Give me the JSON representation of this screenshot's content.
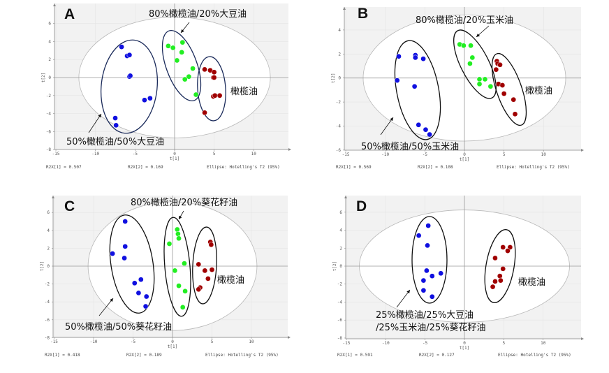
{
  "colors": {
    "blue": "#1010e0",
    "green": "#22ee22",
    "red": "#a00000",
    "group_ellipse": "#1a2a5a",
    "plot_bg": "#f2f2f2"
  },
  "chart_data": [
    {
      "type": "scatter",
      "panel": "A",
      "xlabel": "t[1]",
      "ylabel": "t[2]",
      "xlim": [
        -15,
        14.7
      ],
      "ylim": [
        -8,
        8
      ],
      "xticks": [
        -15,
        -10,
        -5,
        0,
        5,
        10
      ],
      "yticks": [
        -8,
        -6,
        -4,
        -2,
        0,
        2,
        4,
        6
      ],
      "hotelling_ellipse": {
        "rx": 12.1,
        "ry": 6.7
      },
      "labels": {
        "top": "80%橄榄油/20%大豆油",
        "right": "橄榄油",
        "bottom": [
          "50%橄榄油/50%大豆油"
        ]
      },
      "footer": {
        "r2x1": "R2X[1] = 0.507",
        "r2x2": "R2X[2] = 0.169",
        "ellipse": "Ellipse: Hotelling's T2 (95%)"
      },
      "series": [
        {
          "name": "50%橄榄油/50%大豆油",
          "color": "blue",
          "points": [
            [
              -6.7,
              3.4
            ],
            [
              -6.0,
              2.4
            ],
            [
              -5.7,
              2.5
            ],
            [
              -5.7,
              0.1
            ],
            [
              -5.6,
              0.2
            ],
            [
              -3.8,
              -2.5
            ],
            [
              -3.1,
              -2.3
            ],
            [
              -7.5,
              -4.5
            ],
            [
              -7.4,
              -5.3
            ]
          ]
        },
        {
          "name": "80%橄榄油/20%大豆油",
          "color": "green",
          "points": [
            [
              -0.8,
              3.5
            ],
            [
              -0.2,
              3.3
            ],
            [
              1.0,
              3.9
            ],
            [
              0.9,
              2.8
            ],
            [
              0.3,
              1.9
            ],
            [
              2.3,
              1.0
            ],
            [
              1.8,
              0.1
            ],
            [
              1.3,
              -0.2
            ],
            [
              2.7,
              -1.9
            ]
          ]
        },
        {
          "name": "橄榄油",
          "color": "red",
          "points": [
            [
              3.8,
              0.9
            ],
            [
              4.5,
              0.8
            ],
            [
              5.0,
              0.6
            ],
            [
              4.9,
              0.0
            ],
            [
              5.0,
              0.0
            ],
            [
              4.9,
              -2.1
            ],
            [
              5.1,
              -2.0
            ],
            [
              5.7,
              -2.0
            ],
            [
              3.8,
              -3.9
            ]
          ]
        }
      ]
    },
    {
      "type": "scatter",
      "panel": "B",
      "xlabel": "t[1]",
      "ylabel": "t[2]",
      "xlim": [
        -15,
        14.8
      ],
      "ylim": [
        -6,
        5.8
      ],
      "xticks": [
        -15,
        -10,
        -5,
        0,
        5,
        10
      ],
      "yticks": [
        -6,
        -4,
        -2,
        0,
        2,
        4
      ],
      "hotelling_ellipse": {
        "rx": 12.8,
        "ry": 5.25
      },
      "labels": {
        "top": "80%橄榄油/20%玉米油",
        "right": "橄榄油",
        "bottom": [
          "50%橄榄油/50%玉米油"
        ]
      },
      "footer": {
        "r2x1": "R2X[1] = 0.569",
        "r2x2": "R2X[2] = 0.108",
        "ellipse": "Ellipse: Hotelling's T2 (95%)"
      },
      "series": [
        {
          "name": "50%橄榄油/50%玉米油",
          "color": "blue",
          "points": [
            [
              -8.3,
              1.8
            ],
            [
              -6.2,
              1.9
            ],
            [
              -6.2,
              1.7
            ],
            [
              -5.2,
              1.6
            ],
            [
              -8.5,
              -0.2
            ],
            [
              -6.3,
              -0.7
            ],
            [
              -5.8,
              -3.9
            ],
            [
              -4.9,
              -4.3
            ],
            [
              -4.4,
              -4.7
            ]
          ]
        },
        {
          "name": "80%橄榄油/20%玉米油",
          "color": "green",
          "points": [
            [
              -0.6,
              2.8
            ],
            [
              -0.1,
              2.7
            ],
            [
              0.8,
              2.7
            ],
            [
              1.0,
              1.7
            ],
            [
              0.7,
              1.2
            ],
            [
              1.9,
              -0.1
            ],
            [
              2.6,
              -0.1
            ],
            [
              1.9,
              -0.5
            ],
            [
              3.3,
              -0.7
            ]
          ]
        },
        {
          "name": "橄榄油",
          "color": "red",
          "points": [
            [
              4.1,
              1.4
            ],
            [
              4.2,
              1.2
            ],
            [
              4.5,
              1.1
            ],
            [
              4.0,
              0.7
            ],
            [
              4.3,
              -0.5
            ],
            [
              4.8,
              -0.6
            ],
            [
              5.0,
              -1.3
            ],
            [
              6.2,
              -1.8
            ],
            [
              6.4,
              -3.0
            ]
          ]
        }
      ]
    },
    {
      "type": "scatter",
      "panel": "C",
      "xlabel": "t[1]",
      "ylabel": "t[2]",
      "xlim": [
        -15,
        14.7
      ],
      "ylim": [
        -8,
        7.9
      ],
      "xticks": [
        -15,
        -10,
        -5,
        0,
        5,
        10
      ],
      "yticks": [
        -8,
        -6,
        -4,
        -2,
        0,
        2,
        4,
        6
      ],
      "hotelling_ellipse": {
        "rx": 10.7,
        "ry": 7.2
      },
      "labels": {
        "top": "80%橄榄油/20%葵花籽油",
        "right": "橄榄油",
        "bottom": [
          "50%橄榄油/50%葵花籽油"
        ]
      },
      "footer": {
        "r2x1": "R2X[1] = 0.418",
        "r2x2": "R2X[2] = 0.189",
        "ellipse": "Ellipse: Hotelling's T2 (95%)"
      },
      "series": [
        {
          "name": "50%橄榄油/50%葵花籽油",
          "color": "blue",
          "points": [
            [
              -6.0,
              5.0
            ],
            [
              -6.0,
              2.2
            ],
            [
              -7.6,
              1.4
            ],
            [
              -6.1,
              0.9
            ],
            [
              -4.0,
              -1.5
            ],
            [
              -4.8,
              -1.9
            ],
            [
              -4.3,
              -3.0
            ],
            [
              -3.3,
              -3.4
            ],
            [
              -3.4,
              -4.5
            ]
          ]
        },
        {
          "name": "80%橄榄油/20%葵花籽油",
          "color": "green",
          "points": [
            [
              0.6,
              4.1
            ],
            [
              0.7,
              3.6
            ],
            [
              0.8,
              3.1
            ],
            [
              -0.4,
              2.5
            ],
            [
              1.5,
              0.3
            ],
            [
              0.3,
              -0.5
            ],
            [
              0.8,
              -2.2
            ],
            [
              1.6,
              -2.8
            ],
            [
              1.3,
              -4.6
            ]
          ]
        },
        {
          "name": "橄榄油",
          "color": "red",
          "points": [
            [
              4.8,
              2.7
            ],
            [
              4.9,
              2.4
            ],
            [
              3.3,
              0.2
            ],
            [
              4.1,
              -0.5
            ],
            [
              5.0,
              -0.4
            ],
            [
              4.5,
              -1.4
            ],
            [
              3.5,
              -2.4
            ],
            [
              3.3,
              -2.6
            ]
          ]
        }
      ]
    },
    {
      "type": "scatter",
      "panel": "D",
      "xlabel": "t[1]",
      "ylabel": "t[2]",
      "xlim": [
        -15,
        14.8
      ],
      "ylim": [
        -8,
        7.9
      ],
      "xticks": [
        -15,
        -10,
        -5,
        0,
        5,
        10
      ],
      "yticks": [
        -8,
        -6,
        -4,
        -2,
        0,
        2,
        4,
        6
      ],
      "hotelling_ellipse": {
        "rx": 13.35,
        "ry": 6.25
      },
      "labels": {
        "top": "",
        "right": "橄榄油",
        "bottom": [
          "25%橄榄油/25%大豆油",
          "/25%玉米油/25%葵花籽油"
        ]
      },
      "footer": {
        "r2x1": "R2X[1] = 0.591",
        "r2x2": "R2X[2] = 0.127",
        "ellipse": "Ellipse: Hotelling's T2 (95%)"
      },
      "series": [
        {
          "name": "25%橄榄油/25%大豆油/25%玉米油/25%葵花籽油",
          "color": "blue",
          "points": [
            [
              -4.6,
              4.5
            ],
            [
              -5.8,
              3.4
            ],
            [
              -4.7,
              2.3
            ],
            [
              -4.8,
              -0.5
            ],
            [
              -4.1,
              -1.1
            ],
            [
              -3.0,
              -0.8
            ],
            [
              -5.2,
              -1.6
            ],
            [
              -5.2,
              -2.7
            ],
            [
              -4.1,
              -3.4
            ]
          ]
        },
        {
          "name": "橄榄油",
          "color": "red",
          "points": [
            [
              4.9,
              2.1
            ],
            [
              5.8,
              2.1
            ],
            [
              5.5,
              1.7
            ],
            [
              3.9,
              0.9
            ],
            [
              4.9,
              -0.3
            ],
            [
              4.5,
              -1.1
            ],
            [
              4.6,
              -1.6
            ],
            [
              3.9,
              -1.7
            ],
            [
              3.6,
              -2.3
            ]
          ]
        }
      ]
    }
  ]
}
